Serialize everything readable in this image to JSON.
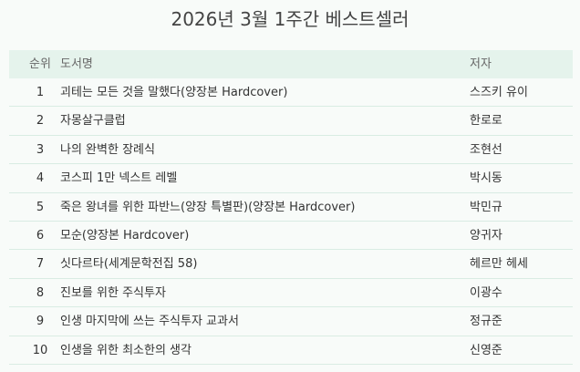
{
  "header": {
    "title": "2026년 3월 1주간 베스트셀러"
  },
  "table": {
    "columns": [
      "순위",
      "도서명",
      "저자"
    ],
    "rows": [
      [
        1,
        "괴테는 모든 것을 말했다(양장본 Hardcover)",
        "스즈키 유이"
      ],
      [
        2,
        "자몽살구클럽",
        "한로로"
      ],
      [
        3,
        "나의 완벽한 장례식",
        "조현선"
      ],
      [
        4,
        "코스피 1만 넥스트 레벨",
        "박시동"
      ],
      [
        5,
        "죽은 왕녀를 위한 파반느(양장 특별판)(양장본 Hardcover)",
        "박민규"
      ],
      [
        6,
        "모순(양장본 Hardcover)",
        "양귀자"
      ],
      [
        7,
        "싯다르타(세계문학전집 58)",
        "헤르만 헤세"
      ],
      [
        8,
        "진보를 위한 주식투자",
        "이광수"
      ],
      [
        9,
        "인생 마지막에 쓰는 주식투자 교과서",
        "정규준"
      ],
      [
        10,
        "인생을 위한 최소한의 생각",
        "신영준"
      ]
    ]
  }
}
